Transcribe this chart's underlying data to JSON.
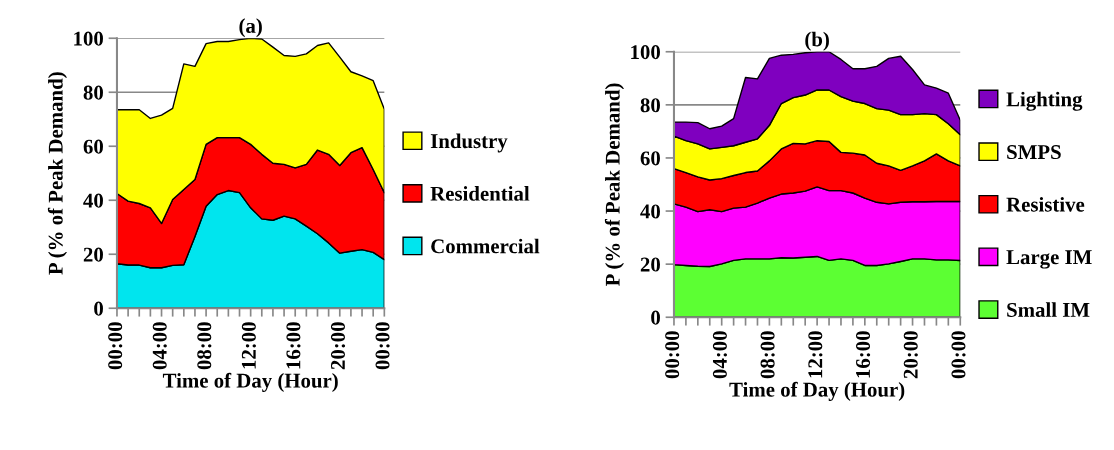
{
  "chart_data": [
    {
      "type": "area",
      "stacked": true,
      "title": "(a)",
      "xlabel": "Time of Day (Hour)",
      "ylabel": "P (% of Peak Demand)",
      "x": [
        0,
        1,
        2,
        3,
        4,
        5,
        6,
        7,
        8,
        9,
        10,
        11,
        12,
        13,
        14,
        15,
        16,
        17,
        18,
        19,
        20,
        21,
        22,
        23,
        24
      ],
      "xlim": [
        0,
        24
      ],
      "xticks": [
        {
          "value": 0,
          "label": "00:00"
        },
        {
          "value": 1,
          "label": null
        },
        {
          "value": 2,
          "label": null
        },
        {
          "value": 3,
          "label": null
        },
        {
          "value": 4,
          "label": "04:00"
        },
        {
          "value": 5,
          "label": null
        },
        {
          "value": 6,
          "label": null
        },
        {
          "value": 7,
          "label": null
        },
        {
          "value": 8,
          "label": "08:00"
        },
        {
          "value": 9,
          "label": null
        },
        {
          "value": 10,
          "label": null
        },
        {
          "value": 11,
          "label": null
        },
        {
          "value": 12,
          "label": "12:00"
        },
        {
          "value": 13,
          "label": null
        },
        {
          "value": 14,
          "label": null
        },
        {
          "value": 15,
          "label": null
        },
        {
          "value": 16,
          "label": "16:00"
        },
        {
          "value": 17,
          "label": null
        },
        {
          "value": 18,
          "label": null
        },
        {
          "value": 19,
          "label": null
        },
        {
          "value": 20,
          "label": "20:00"
        },
        {
          "value": 21,
          "label": null
        },
        {
          "value": 22,
          "label": null
        },
        {
          "value": 23,
          "label": null
        },
        {
          "value": 24,
          "label": "00:00"
        }
      ],
      "ylim": [
        0,
        100
      ],
      "yticks": [
        0,
        20,
        40,
        60,
        80,
        100
      ],
      "grid": "y",
      "legend": "right",
      "series": [
        {
          "name": "Commercial",
          "color": "#00e5ee",
          "values": [
            16.5,
            16,
            16,
            15,
            15,
            15.9,
            16.1,
            26.6,
            37.8,
            42.1,
            43.6,
            42.8,
            37.2,
            33.1,
            32.6,
            34.1,
            33.1,
            30.4,
            27.6,
            24.2,
            20.4,
            21.1,
            21.7,
            20.7,
            18
          ]
        },
        {
          "name": "Residential",
          "color": "#ff0000",
          "values": [
            26,
            23.7,
            22.8,
            22.2,
            16.4,
            24.4,
            27.9,
            21.1,
            22.9,
            21.1,
            19.6,
            20.4,
            23.5,
            23.9,
            21.1,
            19.2,
            18.9,
            22.9,
            31,
            32.8,
            32.5,
            36.5,
            37.8,
            30.7,
            24.8
          ]
        },
        {
          "name": "Industry",
          "color": "#ffff00",
          "values": [
            31,
            33.8,
            34.7,
            33.1,
            40.1,
            33.7,
            46.5,
            41.9,
            37.3,
            35.6,
            35.6,
            36.3,
            39.3,
            42.7,
            43,
            40.3,
            41.3,
            40.9,
            38.7,
            41.3,
            40.1,
            30,
            26.6,
            32.9,
            30.9
          ]
        }
      ]
    },
    {
      "type": "area",
      "stacked": true,
      "title": "(b)",
      "xlabel": "Time of Day (Hour)",
      "ylabel": "P (% of Peak Demand)",
      "x": [
        0,
        1,
        2,
        3,
        4,
        5,
        6,
        7,
        8,
        9,
        10,
        11,
        12,
        13,
        14,
        15,
        16,
        17,
        18,
        19,
        20,
        21,
        22,
        23,
        24
      ],
      "xlim": [
        0,
        24
      ],
      "xticks": [
        {
          "value": 0,
          "label": "00:00"
        },
        {
          "value": 1,
          "label": null
        },
        {
          "value": 2,
          "label": null
        },
        {
          "value": 3,
          "label": null
        },
        {
          "value": 4,
          "label": "04:00"
        },
        {
          "value": 5,
          "label": null
        },
        {
          "value": 6,
          "label": null
        },
        {
          "value": 7,
          "label": null
        },
        {
          "value": 8,
          "label": "08:00"
        },
        {
          "value": 9,
          "label": null
        },
        {
          "value": 10,
          "label": null
        },
        {
          "value": 11,
          "label": null
        },
        {
          "value": 12,
          "label": "12:00"
        },
        {
          "value": 13,
          "label": null
        },
        {
          "value": 14,
          "label": null
        },
        {
          "value": 15,
          "label": null
        },
        {
          "value": 16,
          "label": "16:00"
        },
        {
          "value": 17,
          "label": null
        },
        {
          "value": 18,
          "label": null
        },
        {
          "value": 19,
          "label": null
        },
        {
          "value": 20,
          "label": "20:00"
        },
        {
          "value": 21,
          "label": null
        },
        {
          "value": 22,
          "label": null
        },
        {
          "value": 23,
          "label": null
        },
        {
          "value": 24,
          "label": "00:00"
        }
      ],
      "ylim": [
        0,
        100
      ],
      "yticks": [
        0,
        20,
        40,
        60,
        80,
        100
      ],
      "grid": "y",
      "legend": "right",
      "series": [
        {
          "name": "Small IM",
          "color": "#5cff33",
          "values": [
            19.8,
            19.5,
            19.2,
            19.1,
            20.1,
            21.4,
            22,
            22,
            22,
            22.4,
            22.3,
            22.6,
            22.9,
            21.4,
            22,
            21.4,
            19.5,
            19.5,
            20.1,
            21,
            22,
            22,
            21.6,
            21.6,
            21.4
          ]
        },
        {
          "name": "Large IM",
          "color": "#ff00ff",
          "values": [
            22.9,
            22,
            20.6,
            21.4,
            19.7,
            19.7,
            19.5,
            21,
            22.9,
            24,
            24.5,
            24.9,
            26.2,
            26.3,
            25.7,
            25.4,
            25.4,
            23.8,
            22.6,
            22.3,
            21.5,
            21.5,
            22,
            22,
            22.2
          ]
        },
        {
          "name": "Resistive",
          "color": "#ff0000",
          "values": [
            13.3,
            13,
            13.1,
            11.2,
            12.4,
            12.3,
            13,
            12.1,
            14,
            17,
            18.7,
            17.8,
            17.4,
            18.5,
            14.4,
            15,
            16.2,
            14.7,
            14.3,
            12,
            13.5,
            15.4,
            17.9,
            15.3,
            13.4
          ]
        },
        {
          "name": "SMPS",
          "color": "#ffff00",
          "values": [
            12.2,
            12,
            12.4,
            11.7,
            11.8,
            11.2,
            11.4,
            12.1,
            13.4,
            17.1,
            17.2,
            18.4,
            19.1,
            19.4,
            21,
            19.6,
            19.4,
            20.6,
            21,
            21,
            19.3,
            17.8,
            14.8,
            14,
            11.7
          ]
        },
        {
          "name": "Lighting",
          "color": "#7f00bf",
          "values": [
            5.3,
            7,
            8,
            7.6,
            8,
            10.2,
            24.4,
            22.6,
            25.2,
            18.2,
            16.3,
            15.9,
            14.4,
            14.4,
            14,
            12.2,
            13.1,
            15.9,
            19.5,
            22,
            17,
            10.8,
            10,
            11.5,
            5.5
          ]
        }
      ]
    }
  ]
}
